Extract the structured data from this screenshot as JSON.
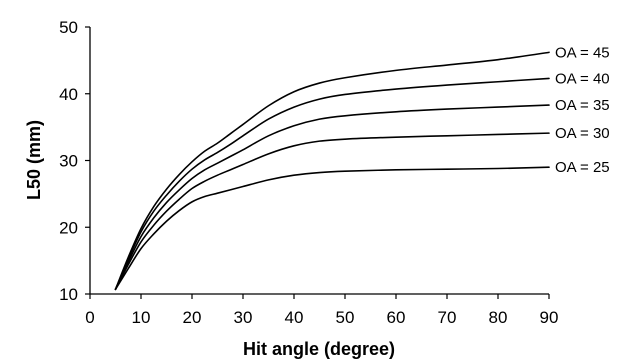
{
  "chart_data": {
    "type": "line",
    "title": "",
    "xlabel": "Hit angle (degree)",
    "ylabel": "L50 (mm)",
    "xlim": [
      0,
      90
    ],
    "ylim": [
      10,
      50
    ],
    "xticks": [
      0,
      10,
      20,
      30,
      40,
      50,
      60,
      70,
      80,
      90
    ],
    "yticks": [
      10,
      20,
      30,
      40,
      50
    ],
    "grid": false,
    "legend": "none",
    "x": [
      5,
      7.5,
      10,
      12.5,
      15,
      17.5,
      20,
      22.5,
      25,
      27.5,
      30,
      35,
      40,
      45,
      50,
      60,
      70,
      80,
      90
    ],
    "series": [
      {
        "name": "OA = 45",
        "values": [
          10.7,
          15.5,
          19.8,
          23.1,
          25.7,
          27.9,
          29.8,
          31.4,
          32.6,
          34.0,
          35.4,
          38.2,
          40.3,
          41.6,
          42.4,
          43.5,
          44.3,
          45.1,
          46.2
        ]
      },
      {
        "name": "OA = 40",
        "values": [
          10.7,
          15.2,
          19.3,
          22.4,
          24.8,
          26.9,
          28.7,
          30.1,
          31.2,
          32.4,
          33.7,
          36.2,
          38.0,
          39.2,
          39.9,
          40.7,
          41.3,
          41.8,
          42.3
        ]
      },
      {
        "name": "OA = 35",
        "values": [
          10.7,
          14.8,
          18.6,
          21.4,
          23.7,
          25.6,
          27.3,
          28.6,
          29.6,
          30.6,
          31.6,
          33.7,
          35.2,
          36.2,
          36.7,
          37.3,
          37.7,
          38.0,
          38.3
        ]
      },
      {
        "name": "OA = 30",
        "values": [
          10.7,
          14.4,
          17.8,
          20.3,
          22.4,
          24.2,
          25.8,
          26.9,
          27.8,
          28.6,
          29.4,
          31.0,
          32.2,
          32.9,
          33.2,
          33.5,
          33.7,
          33.9,
          34.1
        ]
      },
      {
        "name": "OA = 25",
        "values": [
          10.7,
          13.8,
          16.8,
          19.0,
          20.9,
          22.5,
          23.8,
          24.6,
          25.1,
          25.6,
          26.1,
          27.1,
          27.8,
          28.2,
          28.4,
          28.6,
          28.7,
          28.8,
          29.0
        ]
      }
    ]
  }
}
